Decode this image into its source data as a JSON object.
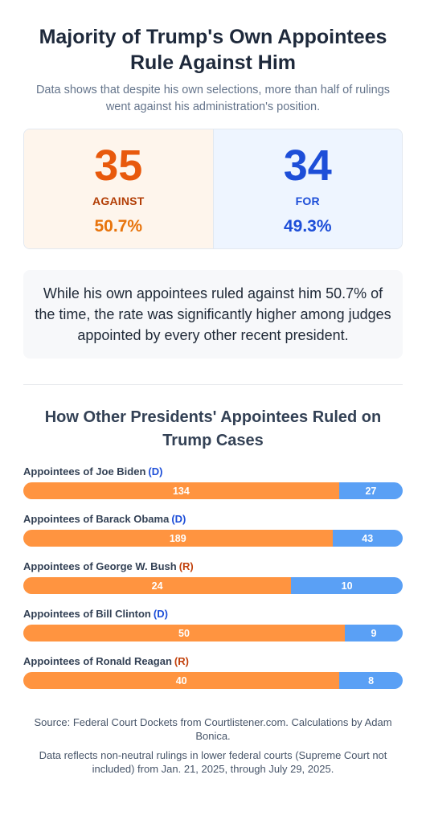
{
  "header": {
    "title": "Majority of Trump's Own Appointees Rule Against Him",
    "subtitle": "Data shows that despite his own selections, more than half of rulings went against his administration's position."
  },
  "stats": {
    "against": {
      "count": "35",
      "label": "AGAINST",
      "percent": "50.7%"
    },
    "for": {
      "count": "34",
      "label": "FOR",
      "percent": "49.3%"
    }
  },
  "note": "While his own appointees ruled against him 50.7% of the time, the rate was significantly higher among judges appointed by every other recent president.",
  "colors": {
    "against": "#ff9440",
    "for": "#5aa0f5",
    "democrat": "#1d4ed8",
    "republican": "#c2410c"
  },
  "chart_data": {
    "type": "bar",
    "orientation": "horizontal-stacked",
    "title": "How Other Presidents' Appointees Ruled on Trump Cases",
    "categories": [
      {
        "label": "Appointees of Joe Biden",
        "party": "(D)"
      },
      {
        "label": "Appointees of Barack Obama",
        "party": "(D)"
      },
      {
        "label": "Appointees of George W. Bush",
        "party": "(R)"
      },
      {
        "label": "Appointees of Bill Clinton",
        "party": "(D)"
      },
      {
        "label": "Appointees of Ronald Reagan",
        "party": "(R)"
      }
    ],
    "series": [
      {
        "key": "against",
        "values": [
          134,
          189,
          24,
          50,
          40
        ]
      },
      {
        "key": "for",
        "values": [
          27,
          43,
          10,
          9,
          8
        ]
      }
    ]
  },
  "footer": {
    "source": "Source: Federal Court Dockets from Courtlistener.com. Calculations by Adam Bonica.",
    "note": "Data reflects non-neutral rulings in lower federal courts (Supreme Court not included) from Jan. 21, 2025, through July 29, 2025."
  }
}
